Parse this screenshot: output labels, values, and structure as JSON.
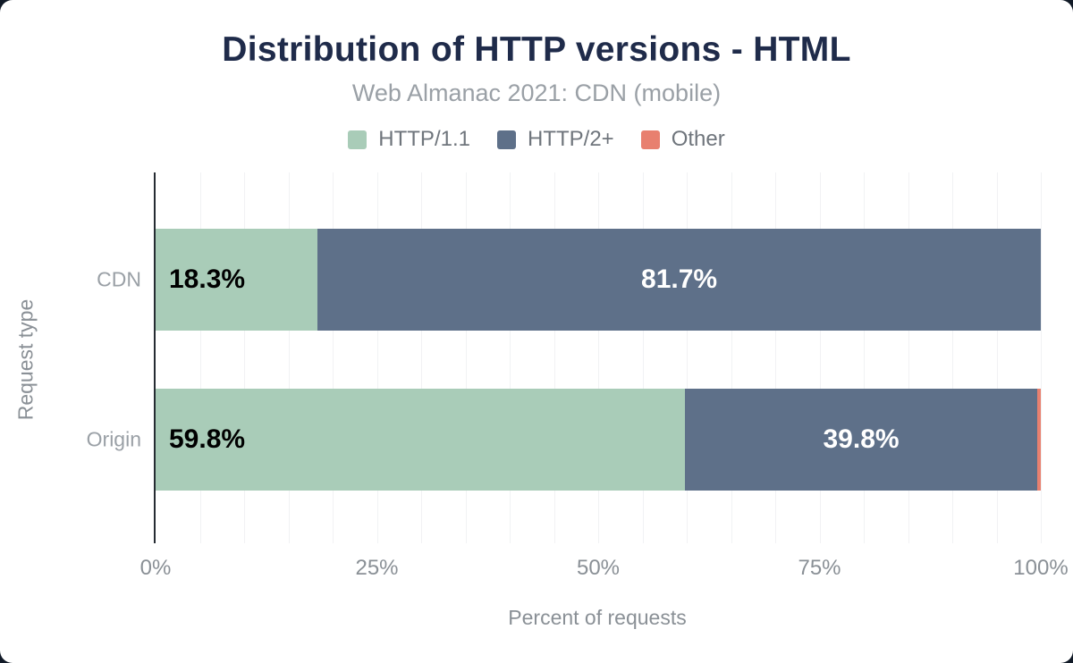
{
  "title": "Distribution of HTTP versions - HTML",
  "subtitle": "Web Almanac 2021: CDN (mobile)",
  "colors": {
    "background": "#111a27",
    "card": "#ffffff",
    "title": "#1f2b4a",
    "subtitle": "#9aa0a6",
    "legend_text": "#6f757c",
    "axis_text": "#8a9096",
    "category_text": "#9aa0a6",
    "grid": "#f1f2f4",
    "axis_line": "#262c33",
    "label_on_light": "#000000",
    "label_on_dark": "#ffffff"
  },
  "chart_data": {
    "type": "bar",
    "orientation": "horizontal",
    "stacked": true,
    "title": "Distribution of HTTP versions - HTML",
    "subtitle": "Web Almanac 2021: CDN (mobile)",
    "categories": [
      "CDN",
      "Origin"
    ],
    "series": [
      {
        "name": "HTTP/1.1",
        "color": "#a9ccb8",
        "values": [
          18.3,
          59.8
        ]
      },
      {
        "name": "HTTP/2+",
        "color": "#5e7089",
        "values": [
          81.7,
          39.8
        ]
      },
      {
        "name": "Other",
        "color": "#e8806f",
        "values": [
          0.0,
          0.4
        ]
      }
    ],
    "segment_labels": [
      [
        "18.3%",
        "81.7%",
        ""
      ],
      [
        "59.8%",
        "39.8%",
        ""
      ]
    ],
    "xlabel": "Percent of requests",
    "ylabel": "Request type",
    "xlim": [
      0,
      100
    ],
    "xticks": [
      {
        "label": "0%",
        "value": 0
      },
      {
        "label": "25%",
        "value": 25
      },
      {
        "label": "50%",
        "value": 50
      },
      {
        "label": "75%",
        "value": 75
      },
      {
        "label": "100%",
        "value": 100
      }
    ],
    "grid_interval": 5,
    "legend_position": "top",
    "grid": true
  }
}
